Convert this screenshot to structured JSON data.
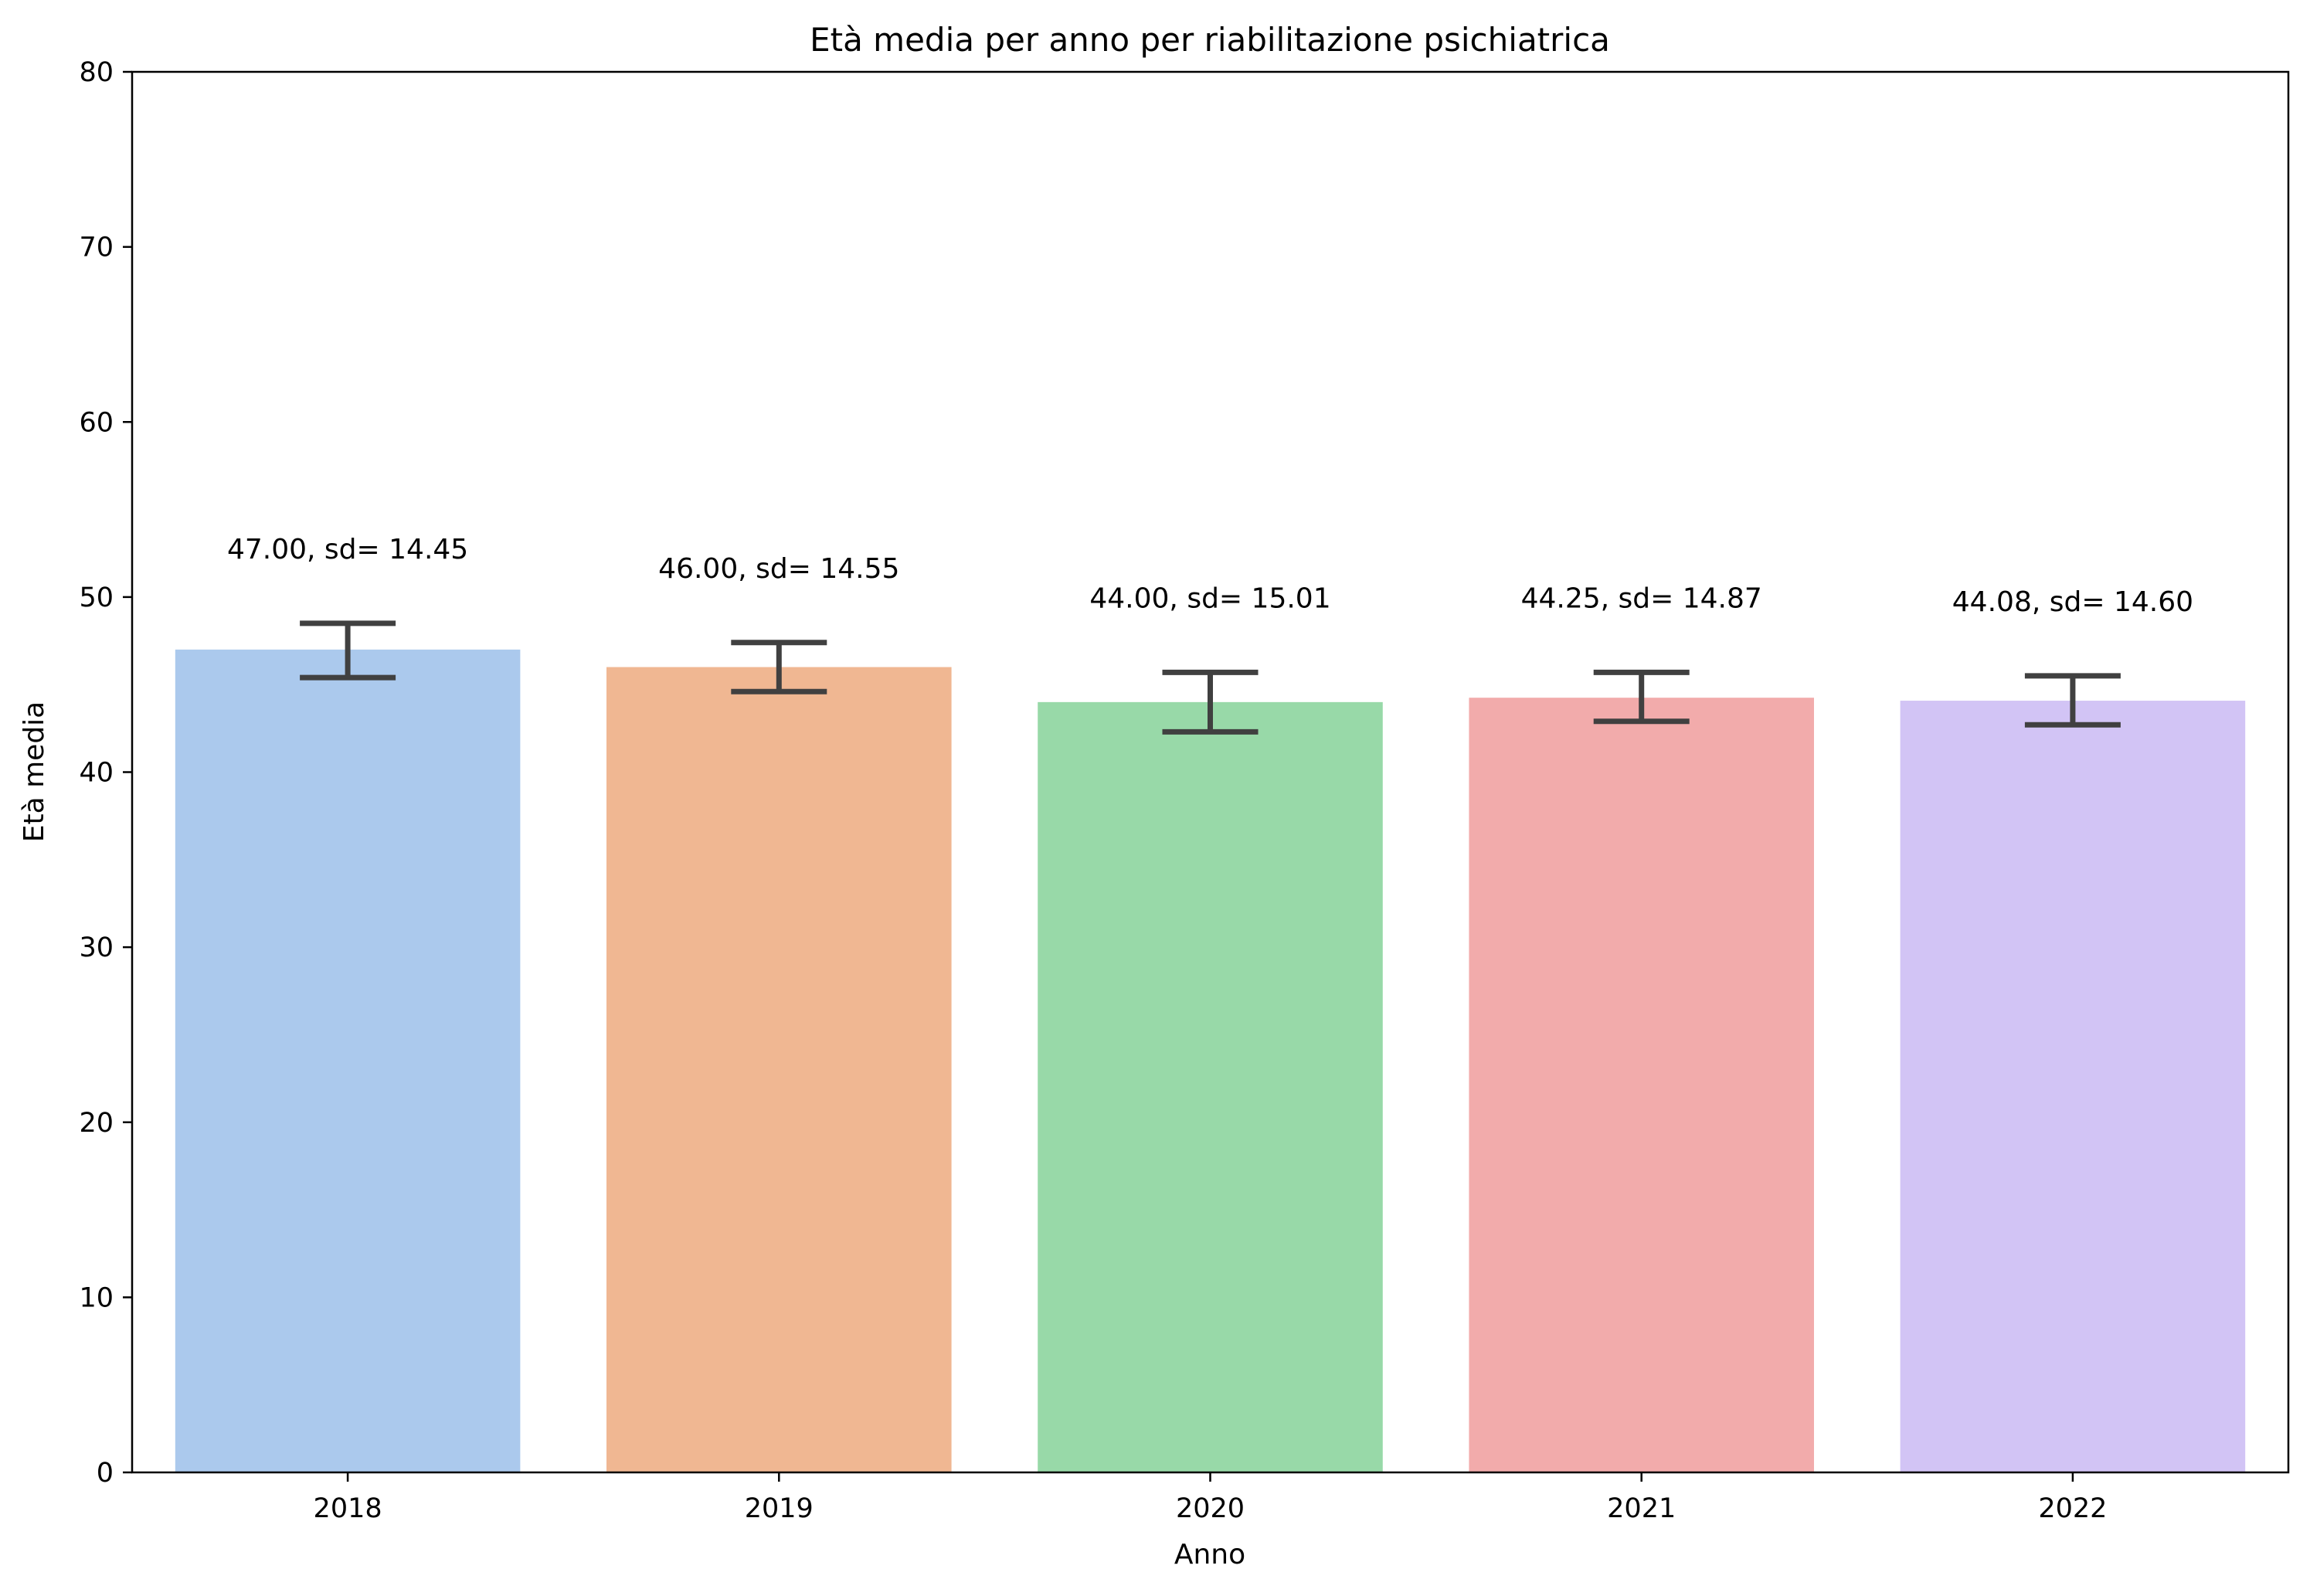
{
  "chart_data": {
    "type": "bar",
    "title": "Età media per anno per riabilitazione psichiatrica",
    "xlabel": "Anno",
    "ylabel": "Età media",
    "categories": [
      "2018",
      "2019",
      "2020",
      "2021",
      "2022"
    ],
    "values": [
      47.0,
      46.0,
      44.0,
      44.25,
      44.08
    ],
    "error_low": [
      45.4,
      44.6,
      42.3,
      42.9,
      42.7
    ],
    "error_high": [
      48.5,
      47.4,
      45.7,
      45.7,
      45.5
    ],
    "data_labels": [
      "47.00, sd= 14.45",
      "46.00, sd= 14.55",
      "44.00, sd= 15.01",
      "44.25, sd= 14.87",
      "44.08, sd= 14.60"
    ],
    "colors": [
      "#abc9ed",
      "#f0b792",
      "#98d9a8",
      "#f2abab",
      "#d2c4f5"
    ],
    "error_color": "#404040",
    "ylim": [
      0,
      80
    ],
    "yticks": [
      "0",
      "10",
      "20",
      "30",
      "40",
      "50",
      "60",
      "70",
      "80"
    ],
    "grid": false,
    "legend": "none"
  }
}
